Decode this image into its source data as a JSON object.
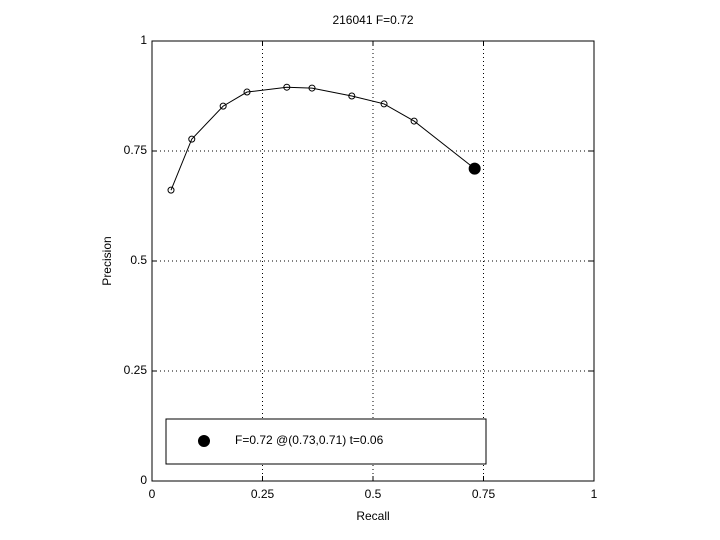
{
  "chart_data": {
    "type": "line",
    "title": "216041 F=0.72",
    "xlabel": "Recall",
    "ylabel": "Precision",
    "xlim": [
      0,
      1
    ],
    "ylim": [
      0,
      1
    ],
    "xticks": [
      0,
      0.25,
      0.5,
      0.75,
      1
    ],
    "yticks": [
      0,
      0.25,
      0.5,
      0.75,
      1
    ],
    "grid": true,
    "legend": "lower left",
    "series": [
      {
        "color": "#000000",
        "marker": "open",
        "x": [
          0.043,
          0.09,
          0.161,
          0.215,
          0.305,
          0.362,
          0.452,
          0.525,
          0.593,
          0.73
        ],
        "values": [
          0.661,
          0.777,
          0.852,
          0.884,
          0.895,
          0.893,
          0.875,
          0.857,
          0.818,
          0.71
        ]
      },
      {
        "name": "F=0.72 @(0.73,0.71) t=0.06",
        "color": "#000000",
        "marker": "filled",
        "x": [
          0.73
        ],
        "values": [
          0.71
        ]
      }
    ]
  }
}
